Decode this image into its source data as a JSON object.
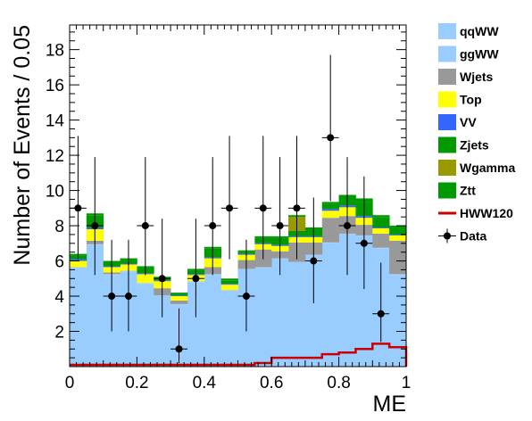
{
  "chart_data": {
    "type": "bar",
    "stacked": true,
    "xlabel": "ME",
    "ylabel": "Number of Events / 0.05",
    "xlim": [
      0,
      1
    ],
    "ylim": [
      0,
      19.4
    ],
    "bin_edges": [
      0.0,
      0.05,
      0.1,
      0.15,
      0.2,
      0.25,
      0.3,
      0.35,
      0.4,
      0.45,
      0.5,
      0.55,
      0.6,
      0.65,
      0.7,
      0.75,
      0.8,
      0.85,
      0.9,
      0.95,
      1.0
    ],
    "x_ticks": [
      {
        "value": 0,
        "label": "0"
      },
      {
        "value": 0.2,
        "label": "0.2"
      },
      {
        "value": 0.4,
        "label": "0.4"
      },
      {
        "value": 0.6,
        "label": "0.6"
      },
      {
        "value": 0.8,
        "label": "0.8"
      },
      {
        "value": 1,
        "label": "1"
      }
    ],
    "y_ticks": [
      {
        "value": 2,
        "label": "2"
      },
      {
        "value": 4,
        "label": "4"
      },
      {
        "value": 6,
        "label": "6"
      },
      {
        "value": 8,
        "label": "8"
      },
      {
        "value": 10,
        "label": "10"
      },
      {
        "value": 12,
        "label": "12"
      },
      {
        "value": 14,
        "label": "14"
      },
      {
        "value": 16,
        "label": "16"
      },
      {
        "value": 18,
        "label": "18"
      }
    ],
    "stack_series": [
      {
        "name": "qqWW",
        "color": "#99ccff",
        "values": [
          5.6,
          6.9,
          5.2,
          5.4,
          4.7,
          4.0,
          3.5,
          4.8,
          5.2,
          4.3,
          5.5,
          5.6,
          6.1,
          5.9,
          6.3,
          7.0,
          7.5,
          7.4,
          6.7,
          5.2
        ]
      },
      {
        "name": "ggWW",
        "color": "#99ccff",
        "values": [
          0.05,
          0.05,
          0.05,
          0.05,
          0.05,
          0.05,
          0.05,
          0.05,
          0.05,
          0.05,
          0.05,
          0.05,
          0.05,
          0.05,
          0.05,
          0.05,
          0.05,
          0.05,
          0.05,
          0.05
        ]
      },
      {
        "name": "Wjets",
        "color": "#999999",
        "values": [
          0.0,
          0.2,
          0.1,
          0.0,
          0.0,
          0.4,
          0.2,
          0.0,
          0.4,
          0.0,
          0.5,
          1.0,
          0.4,
          1.1,
          0.7,
          1.4,
          1.0,
          0.6,
          0.8,
          1.9
        ]
      },
      {
        "name": "Top",
        "color": "#ffff00",
        "values": [
          0.35,
          0.65,
          0.3,
          0.35,
          0.5,
          0.4,
          0.25,
          0.35,
          0.5,
          0.3,
          0.3,
          0.3,
          0.3,
          0.3,
          0.3,
          0.4,
          0.5,
          0.4,
          0.3,
          0.3
        ]
      },
      {
        "name": "VV",
        "color": "#3366ff",
        "values": [
          0.1,
          0.1,
          0.05,
          0.05,
          0.05,
          0.05,
          0.05,
          0.05,
          0.05,
          0.05,
          0.05,
          0.05,
          0.05,
          0.05,
          0.05,
          0.1,
          0.1,
          0.1,
          0.05,
          0.05
        ]
      },
      {
        "name": "Zjets",
        "color": "#009900",
        "values": [
          0.2,
          0.7,
          0.2,
          0.2,
          0.3,
          0.1,
          0.1,
          0.2,
          0.5,
          0.2,
          0.1,
          0.3,
          0.4,
          0.3,
          0.4,
          0.3,
          0.5,
          0.8,
          0.6,
          0.4
        ]
      },
      {
        "name": "Wgamma",
        "color": "#999900",
        "values": [
          0.0,
          0.0,
          0.0,
          0.0,
          0.0,
          0.0,
          0.0,
          0.0,
          0.0,
          0.0,
          0.0,
          0.0,
          0.0,
          0.8,
          0.0,
          0.0,
          0.0,
          0.0,
          0.0,
          0.0
        ]
      },
      {
        "name": "Ztt",
        "color": "#009900",
        "values": [
          0.1,
          0.1,
          0.1,
          0.1,
          0.1,
          0.1,
          0.05,
          0.1,
          0.1,
          0.1,
          0.1,
          0.1,
          0.1,
          0.1,
          0.1,
          0.1,
          0.1,
          0.2,
          0.1,
          0.1
        ]
      }
    ],
    "signal": {
      "name": "HWW120",
      "color": "#cc0000",
      "values": [
        0.1,
        0.1,
        0.1,
        0.1,
        0.1,
        0.1,
        0.1,
        0.1,
        0.1,
        0.1,
        0.1,
        0.2,
        0.5,
        0.5,
        0.5,
        0.7,
        0.8,
        1.0,
        1.3,
        1.1
      ]
    },
    "data": {
      "name": "Data",
      "color": "#000000",
      "x": [
        0.025,
        0.075,
        0.125,
        0.175,
        0.225,
        0.275,
        0.325,
        0.375,
        0.425,
        0.475,
        0.525,
        0.575,
        0.625,
        0.675,
        0.725,
        0.775,
        0.825,
        0.875,
        0.925
      ],
      "y": [
        9,
        8,
        4,
        4,
        8,
        5,
        1,
        5,
        8,
        9,
        4,
        9,
        8,
        9,
        6,
        13,
        8,
        7,
        3
      ],
      "err_up": [
        4.1,
        3.9,
        3.2,
        3.2,
        3.9,
        3.4,
        2.3,
        3.4,
        3.9,
        4.1,
        3.2,
        4.1,
        3.9,
        4.1,
        3.6,
        4.7,
        3.9,
        3.8,
        2.9
      ],
      "err_down": [
        2.9,
        2.8,
        2.0,
        2.0,
        2.8,
        2.2,
        0.8,
        2.2,
        2.8,
        2.9,
        2.0,
        2.9,
        2.8,
        2.9,
        2.4,
        3.6,
        2.8,
        2.6,
        1.6
      ]
    },
    "legend": {
      "placement": "right",
      "entries": [
        {
          "label": "qqWW",
          "color": "#99ccff",
          "style": "box"
        },
        {
          "label": "ggWW",
          "color": "#99ccff",
          "style": "box"
        },
        {
          "label": "Wjets",
          "color": "#999999",
          "style": "box"
        },
        {
          "label": "Top",
          "color": "#ffff00",
          "style": "box"
        },
        {
          "label": "VV",
          "color": "#3366ff",
          "style": "box"
        },
        {
          "label": "Zjets",
          "color": "#009900",
          "style": "box"
        },
        {
          "label": "Wgamma",
          "color": "#999900",
          "style": "box"
        },
        {
          "label": "Ztt",
          "color": "#009900",
          "style": "box"
        },
        {
          "label": "HWW120",
          "color": "#cc0000",
          "style": "line"
        },
        {
          "label": "Data",
          "color": "#000000",
          "style": "marker"
        }
      ]
    }
  }
}
